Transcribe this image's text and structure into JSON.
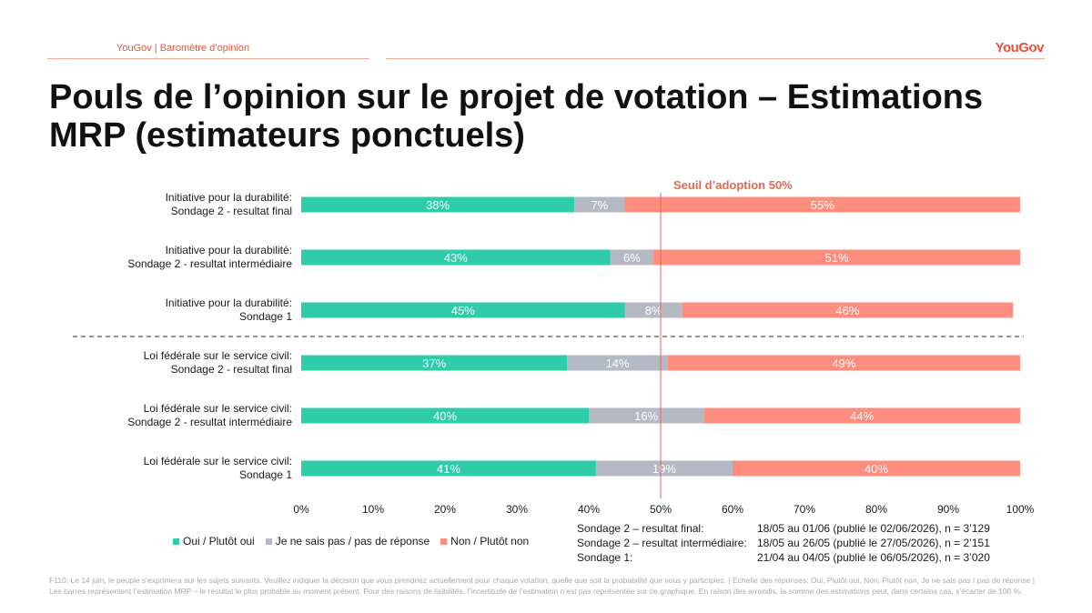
{
  "header": {
    "left_text": "YouGov | Baromètre d’opinion",
    "logo": "YouGov"
  },
  "title": "Pouls de l’opinion sur le projet de votation – Estimations MRP (estimateurs ponctuels)",
  "chart_data": {
    "type": "bar",
    "orientation": "horizontal",
    "stacked": true,
    "categories": [
      [
        "Initiative pour la durabilité:",
        "Sondage 2 - resultat final"
      ],
      [
        "Initiative pour la durabilité:",
        "Sondage 2 - resultat intermédiaire"
      ],
      [
        "Initiative pour la durabilité:",
        "Sondage 1"
      ],
      [
        "Loi fédérale sur le service civil:",
        "Sondage 2 - resultat final"
      ],
      [
        "Loi fédérale sur le service civil:",
        "Sondage 2 - resultat intermédiaire"
      ],
      [
        "Loi fédérale sur le service civil:",
        "Sondage 1"
      ]
    ],
    "series": [
      {
        "name": "Oui / Plutôt oui",
        "color": "#2ecca9",
        "values": [
          38,
          43,
          45,
          37,
          40,
          41
        ]
      },
      {
        "name": "Je ne sais pas / pas de réponse",
        "color": "#b4b9c4",
        "values": [
          7,
          6,
          8,
          14,
          16,
          19
        ]
      },
      {
        "name": "Non / Plutôt non",
        "color": "#fd8d7e",
        "values": [
          55,
          51,
          46,
          49,
          44,
          40
        ]
      }
    ],
    "data_label_suffix": "%",
    "xlim": [
      0,
      100
    ],
    "xticks": [
      "0%",
      "10%",
      "20%",
      "30%",
      "40%",
      "50%",
      "60%",
      "70%",
      "80%",
      "90%",
      "100%"
    ],
    "reference_line": {
      "value": 50,
      "label": "Seuil d’adoption 50%",
      "color": "#e06a55"
    },
    "group_separator_after_row": 2,
    "legend_position": "bottom-left"
  },
  "notes": [
    {
      "label": "Sondage 2 – resultat final:",
      "value": "18/05 au 01/06 (publié le 02/06/2026), n = 3’129"
    },
    {
      "label": "Sondage 2 – resultat intermédiaire:",
      "value": "18/05 au 26/05 (publié le 27/05/2026), n = 2’151"
    },
    {
      "label": "Sondage 1:",
      "value": "21/04 au 04/05 (publié le 06/05/2026), n = 3’020"
    }
  ],
  "footnote": "F110: Le 14 juin, le peuple s’exprimera sur les sujets suivants. Veuillez indiquer la décision que vous prendriez actuellement pour chaque votation, quelle que soit la probabilité que vous y participiez. | Echelle des réponses: Oui, Plutôt oui, Non, Plutôt non, Je ne sais pas / pas de réponse | Les barres représentent l’estimation MRP – le résultat le plus probable au moment présent. Pour des raisons de lisibilités, l’incertitude de l’estimation n’est pas représentée sur ce graphique. En raison des arrondis, la somme des estimations peut, dans certains cas, s’écarter de 100 %."
}
